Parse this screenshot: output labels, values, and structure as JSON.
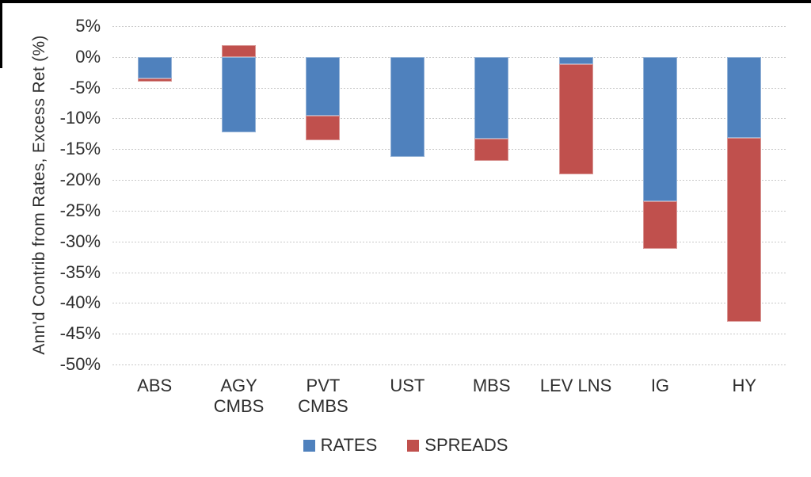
{
  "chart_data": {
    "type": "bar",
    "stacked": true,
    "title": "",
    "xlabel": "",
    "ylabel": "Ann'd Contrib from Rates, Excess Ret (%)",
    "categories": [
      "ABS",
      "AGY CMBS",
      "PVT CMBS",
      "UST",
      "MBS",
      "LEV LNS",
      "IG",
      "HY"
    ],
    "series": [
      {
        "name": "RATES",
        "color": "#4F81BD",
        "values": [
          -3.5,
          -12.2,
          -9.5,
          -16.2,
          -13.3,
          -1.2,
          -23.5,
          -13.2
        ]
      },
      {
        "name": "SPREADS",
        "color": "#C0504D",
        "values": [
          -0.5,
          1.9,
          -4.1,
          0,
          -3.6,
          -17.9,
          -7.7,
          -29.9
        ]
      }
    ],
    "totals": [
      -4.0,
      -10.3,
      -13.6,
      -16.2,
      -16.9,
      -19.1,
      -31.2,
      -43.1
    ],
    "yticks": [
      {
        "value": 5,
        "label": "5%"
      },
      {
        "value": 0,
        "label": "0%"
      },
      {
        "value": -5,
        "label": "-5%"
      },
      {
        "value": -10,
        "label": "-10%"
      },
      {
        "value": -15,
        "label": "-15%"
      },
      {
        "value": -20,
        "label": "-20%"
      },
      {
        "value": -25,
        "label": "-25%"
      },
      {
        "value": -30,
        "label": "-30%"
      },
      {
        "value": -35,
        "label": "-35%"
      },
      {
        "value": -40,
        "label": "-40%"
      },
      {
        "value": -45,
        "label": "-45%"
      },
      {
        "value": -50,
        "label": "-50%"
      }
    ],
    "ylim": [
      -50,
      5
    ],
    "grid": "horizontal-dotted",
    "legend_position": "bottom",
    "colors": {
      "rates": "#4F81BD",
      "spreads": "#C0504D",
      "gridline": "#c9c9c9",
      "text": "#2e2e2e"
    }
  }
}
